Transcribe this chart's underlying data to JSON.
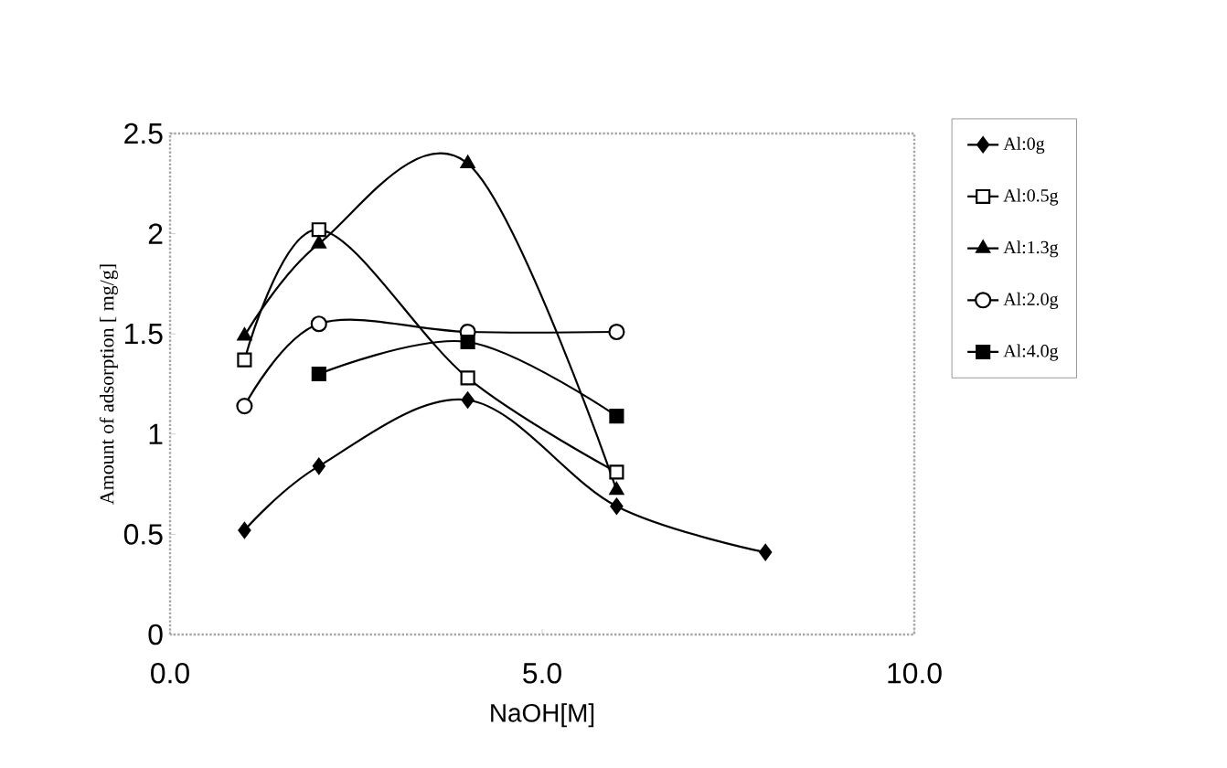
{
  "chart_data": {
    "type": "line",
    "xlabel": "NaOH[M]",
    "ylabel": "Amount of adsorption [ mg/g]",
    "xlim": [
      0,
      10
    ],
    "ylim": [
      0,
      2.5
    ],
    "xticks": [
      {
        "value": 0,
        "label": "0.0"
      },
      {
        "value": 5,
        "label": "5.0"
      },
      {
        "value": 10,
        "label": "10.0"
      }
    ],
    "yticks": [
      0,
      0.5,
      1,
      1.5,
      2,
      2.5
    ],
    "legend": "right",
    "grid": false,
    "x": [
      1,
      2,
      4,
      6,
      8
    ],
    "series": [
      {
        "name": "Al:0g",
        "color": "#000000",
        "marker": "diamond",
        "values": [
          0.52,
          0.84,
          1.17,
          0.64,
          0.41
        ]
      },
      {
        "name": "Al:0.5g",
        "color": "#000000",
        "marker": "square-open",
        "values": [
          1.37,
          2.02,
          1.28,
          0.81,
          null
        ]
      },
      {
        "name": "Al:1.3g",
        "color": "#000000",
        "marker": "triangle",
        "values": [
          1.49,
          1.95,
          2.35,
          0.72,
          null
        ]
      },
      {
        "name": "Al:2.0g",
        "color": "#000000",
        "marker": "circle-open",
        "values": [
          1.14,
          1.55,
          1.51,
          1.51,
          null
        ]
      },
      {
        "name": "Al:4.0g",
        "color": "#000000",
        "marker": "square",
        "values": [
          null,
          1.3,
          1.46,
          1.09,
          null
        ]
      }
    ]
  }
}
